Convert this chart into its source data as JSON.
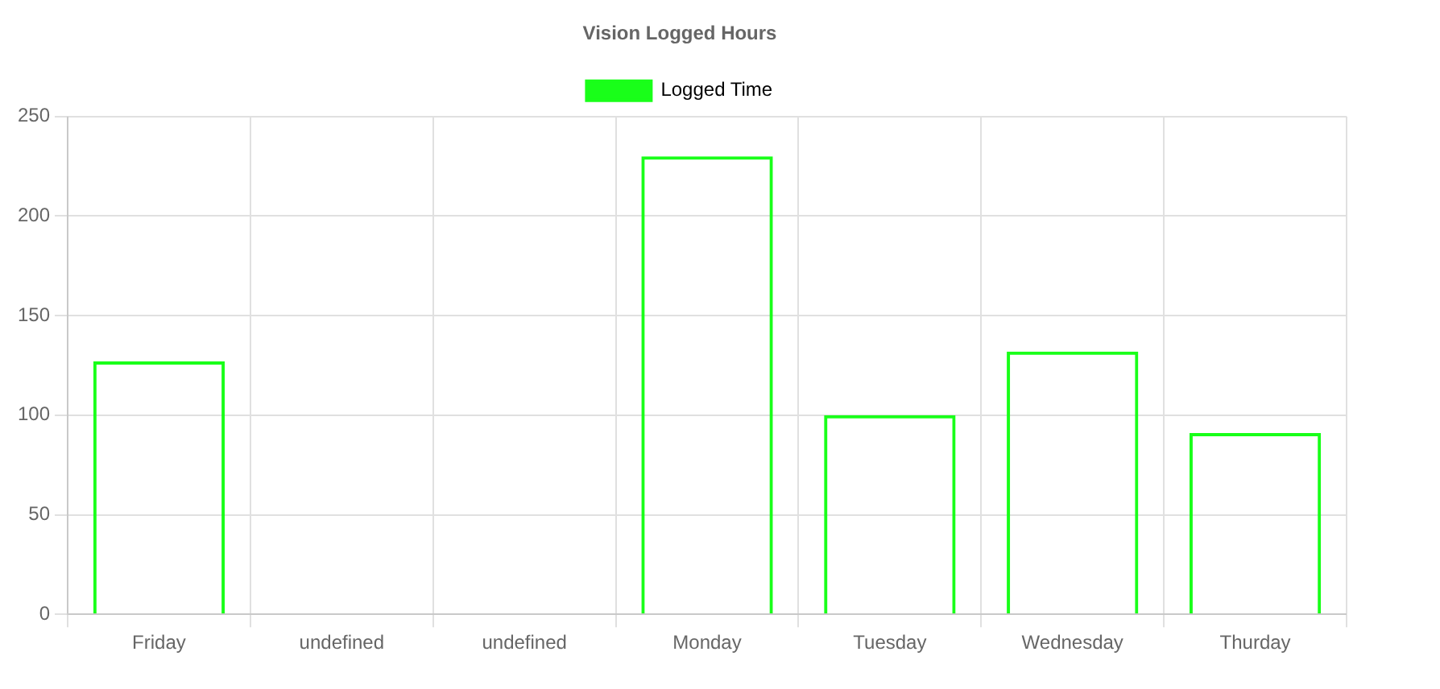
{
  "chart_data": {
    "type": "bar",
    "title": "Vision Logged Hours",
    "categories": [
      "Friday",
      "undefined",
      "undefined",
      "Monday",
      "Tuesday",
      "Wednesday",
      "Thurday"
    ],
    "series": [
      {
        "name": "Logged Time",
        "color": "#19ff19",
        "values": [
          127,
          0,
          0,
          230,
          100,
          132,
          91
        ]
      }
    ],
    "ylim": [
      0,
      250
    ],
    "yticks": [
      0,
      50,
      100,
      150,
      200,
      250
    ],
    "grid": true,
    "legend": "top"
  }
}
